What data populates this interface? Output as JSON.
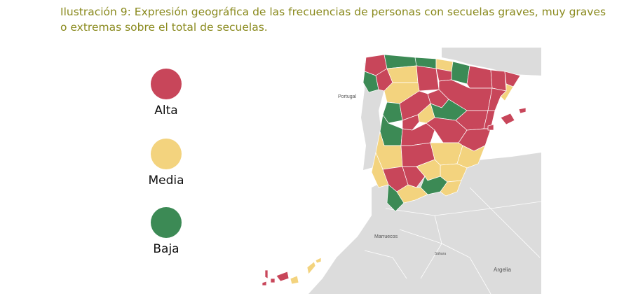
{
  "caption": "Ilustración 9: Expresión geográfica de las frecuencias de personas con secuelas graves, muy graves o extremas sobre el total de secuelas.",
  "legend": [
    {
      "label": "Alta",
      "color": "#c8465a"
    },
    {
      "label": "Media",
      "color": "#f3d37e"
    },
    {
      "label": "Baja",
      "color": "#3c8a55"
    }
  ],
  "map": {
    "labels": {
      "portugal": "Portugal",
      "marruecos": "Marruecos",
      "sahara": "Sáhara",
      "argelia": "Argelia"
    },
    "colors": {
      "land": "#dcdcdc",
      "water": "#ffffff",
      "alta": "#c8465a",
      "media": "#f3d37e",
      "baja": "#3c8a55"
    }
  }
}
